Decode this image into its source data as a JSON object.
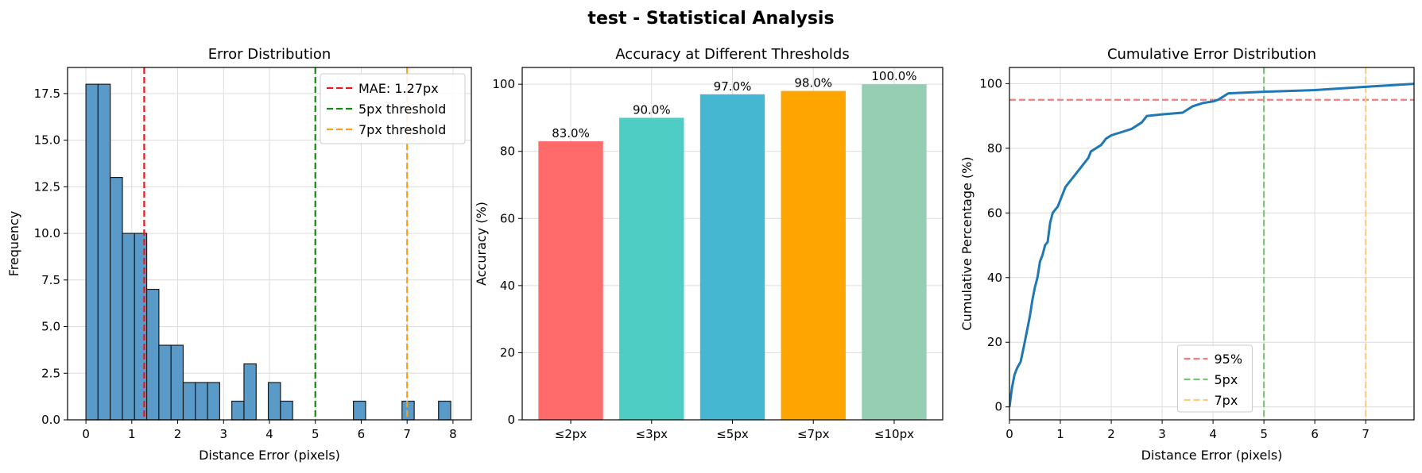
{
  "suptitle": "test - Statistical Analysis",
  "chart_data": [
    {
      "type": "bar",
      "subtype": "histogram",
      "title": "Error Distribution",
      "xlabel": "Distance Error (pixels)",
      "ylabel": "Frequency",
      "xlim": [
        -0.4,
        8.4
      ],
      "ylim": [
        0,
        18.9
      ],
      "xticks": [
        0,
        1,
        2,
        3,
        4,
        5,
        6,
        7,
        8
      ],
      "yticks": [
        0.0,
        2.5,
        5.0,
        7.5,
        10.0,
        12.5,
        15.0,
        17.5
      ],
      "grid": true,
      "bin_width": 0.265,
      "bins": [
        {
          "x0": 0.0,
          "count": 18
        },
        {
          "x0": 0.265,
          "count": 18
        },
        {
          "x0": 0.53,
          "count": 13
        },
        {
          "x0": 0.795,
          "count": 10
        },
        {
          "x0": 1.06,
          "count": 10
        },
        {
          "x0": 1.325,
          "count": 7
        },
        {
          "x0": 1.59,
          "count": 4
        },
        {
          "x0": 1.855,
          "count": 4
        },
        {
          "x0": 2.12,
          "count": 2
        },
        {
          "x0": 2.385,
          "count": 2
        },
        {
          "x0": 2.65,
          "count": 2
        },
        {
          "x0": 3.18,
          "count": 1
        },
        {
          "x0": 3.445,
          "count": 3
        },
        {
          "x0": 3.975,
          "count": 2
        },
        {
          "x0": 4.24,
          "count": 1
        },
        {
          "x0": 5.83,
          "count": 1
        },
        {
          "x0": 6.89,
          "count": 1
        },
        {
          "x0": 7.685,
          "count": 1
        }
      ],
      "bar_color": "#5a9ac9",
      "edge_color": "#1a1a1a",
      "vlines": [
        {
          "x": 1.27,
          "color": "#e8191d",
          "label": "MAE: 1.27px"
        },
        {
          "x": 5,
          "color": "#138a13",
          "label": "5px threshold"
        },
        {
          "x": 7,
          "color": "#f5a21a",
          "label": "7px threshold"
        }
      ],
      "legend": "top-right"
    },
    {
      "type": "bar",
      "title": "Accuracy at Different Thresholds",
      "xlabel": "",
      "ylabel": "Accuracy (%)",
      "ylim": [
        0,
        105
      ],
      "yticks": [
        0,
        20,
        40,
        60,
        80,
        100
      ],
      "grid": true,
      "categories": [
        "≤2px",
        "≤3px",
        "≤5px",
        "≤7px",
        "≤10px"
      ],
      "values": [
        83.0,
        90.0,
        97.0,
        98.0,
        100.0
      ],
      "value_labels": [
        "83.0%",
        "90.0%",
        "97.0%",
        "98.0%",
        "100.0%"
      ],
      "colors": [
        "#ff6b6b",
        "#4ecdc4",
        "#45b7d1",
        "#ffa502",
        "#96ceb4"
      ]
    },
    {
      "type": "line",
      "title": "Cumulative Error Distribution",
      "xlabel": "Distance Error (pixels)",
      "ylabel": "Cumulative Percentage (%)",
      "xlim": [
        0,
        7.95
      ],
      "ylim": [
        -4,
        105
      ],
      "xticks": [
        0,
        1,
        2,
        3,
        4,
        5,
        6,
        7
      ],
      "yticks": [
        0,
        20,
        40,
        60,
        80,
        100
      ],
      "grid": true,
      "line_color": "#1f77b4",
      "x": [
        0,
        0.05,
        0.1,
        0.15,
        0.22,
        0.3,
        0.35,
        0.4,
        0.45,
        0.5,
        0.55,
        0.6,
        0.65,
        0.7,
        0.75,
        0.8,
        0.85,
        0.9,
        0.95,
        1.0,
        1.05,
        1.1,
        1.15,
        1.2,
        1.25,
        1.3,
        1.35,
        1.4,
        1.45,
        1.5,
        1.55,
        1.6,
        1.7,
        1.8,
        1.9,
        2.0,
        2.2,
        2.4,
        2.5,
        2.6,
        2.7,
        3.0,
        3.4,
        3.5,
        3.6,
        3.8,
        4.0,
        4.1,
        4.2,
        4.3,
        5.0,
        6.0,
        7.0,
        8.0
      ],
      "y": [
        0,
        6,
        10,
        12,
        14,
        20,
        24,
        28,
        33,
        37,
        40,
        45,
        47,
        50,
        51,
        57,
        60,
        61,
        62,
        64,
        66,
        68,
        69,
        70,
        71,
        72,
        73,
        74,
        75,
        76,
        77,
        79,
        80,
        81,
        83,
        84,
        85,
        86,
        87,
        88,
        90,
        90.5,
        91,
        92,
        93,
        94,
        94.5,
        95,
        96,
        97,
        97.5,
        98,
        99,
        100
      ],
      "hlines": [
        {
          "y": 95,
          "color": "#f08080",
          "label": "95%"
        }
      ],
      "vlines": [
        {
          "x": 5,
          "color": "#7cc47c",
          "label": "5px"
        },
        {
          "x": 7,
          "color": "#fccf7e",
          "label": "7px"
        }
      ],
      "legend": "lower-center"
    }
  ]
}
